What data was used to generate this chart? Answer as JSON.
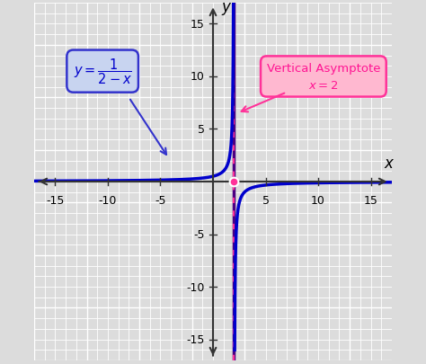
{
  "xlim": [
    -17,
    17
  ],
  "ylim": [
    -17,
    17
  ],
  "xticks": [
    -15,
    -10,
    -5,
    5,
    10,
    15
  ],
  "yticks": [
    -15,
    -10,
    -5,
    5,
    10,
    15
  ],
  "xlabel": "x",
  "ylabel": "y",
  "bg_color": "#dcdcdc",
  "grid_color": "#ffffff",
  "curve_color": "#0000cc",
  "asymptote_solid_color": "#4b0082",
  "asymptote_dot_color": "#ff3399",
  "point_color": "#ff3399",
  "box_blue_face": "#c8d4f0",
  "box_blue_edge": "#3333cc",
  "box_blue_text": "#0000cc",
  "box_pink_face": "#ffb8d0",
  "box_pink_edge": "#ff3399",
  "box_pink_text": "#ff1493",
  "arrow_blue": "#3333cc",
  "arrow_pink": "#ff3399",
  "vertical_asymptote_x": 2,
  "axis_color": "#555555",
  "tick_color": "#555555"
}
